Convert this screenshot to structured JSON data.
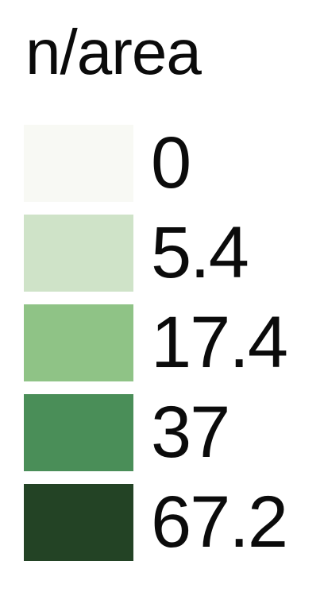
{
  "chart_data": {
    "type": "legend",
    "title": "n/area",
    "entries": [
      {
        "label": "0",
        "value": 0,
        "color": "#f8f9f4"
      },
      {
        "label": "5.4",
        "value": 5.4,
        "color": "#cfe3c8"
      },
      {
        "label": "17.4",
        "value": 17.4,
        "color": "#8fc386"
      },
      {
        "label": "37",
        "value": 37,
        "color": "#4a8e58"
      },
      {
        "label": "67.2",
        "value": 67.2,
        "color": "#234325"
      }
    ]
  }
}
